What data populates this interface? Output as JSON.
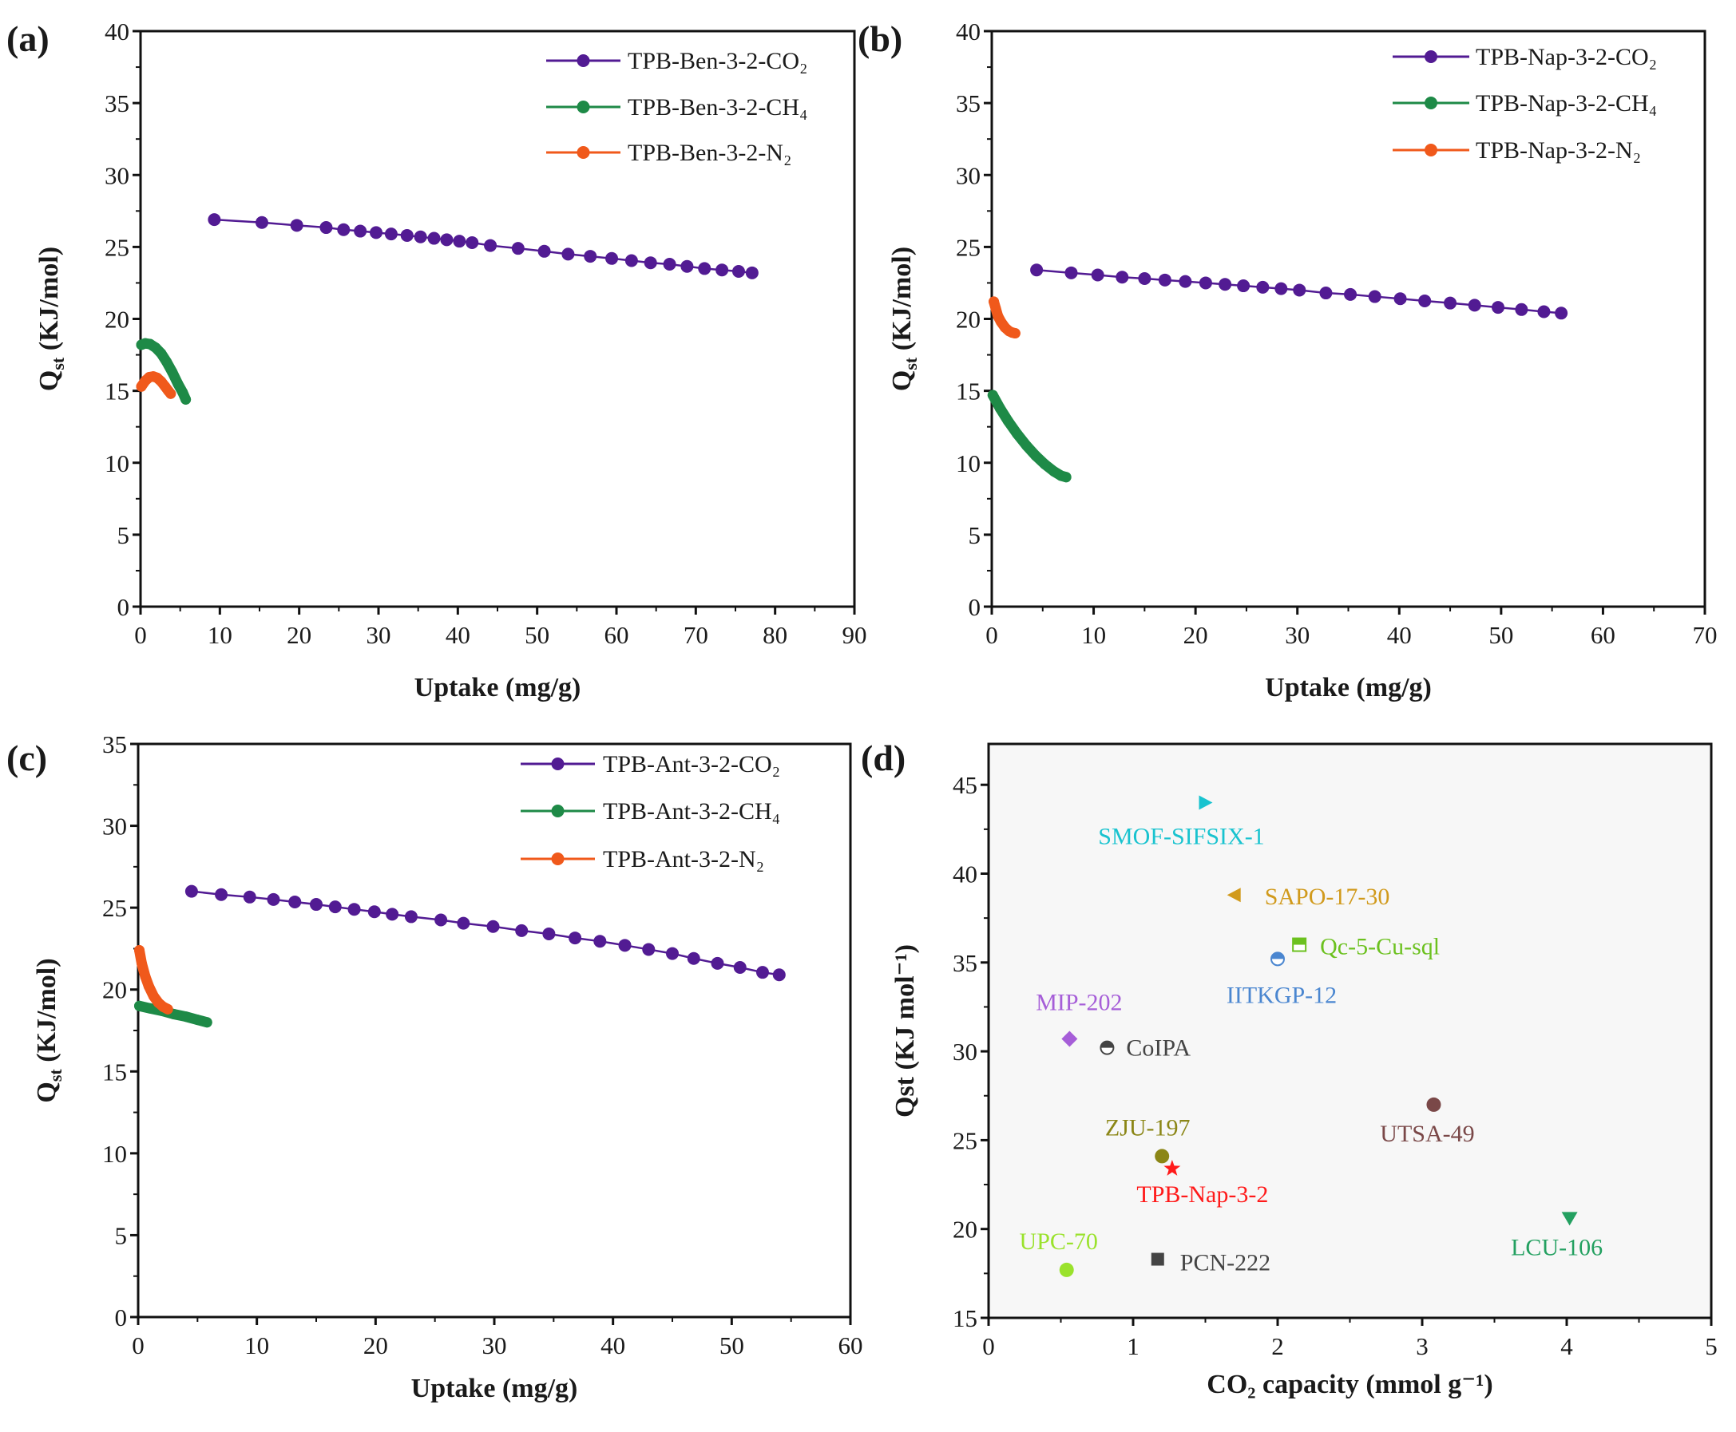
{
  "colors": {
    "co2": "#521b93",
    "ch4": "#1e8a47",
    "n2": "#f0591b",
    "axis": "#111111"
  },
  "chart_data": [
    {
      "panel_label": "(a)",
      "type": "line",
      "xlabel": "Uptake (mg/g)",
      "ylabel_main": "Q",
      "ylabel_sub": "st",
      "ylabel_rest": " (KJ/mol)",
      "xlim": [
        0,
        90
      ],
      "ylim": [
        0,
        40
      ],
      "xticks": [
        0,
        10,
        20,
        30,
        40,
        50,
        60,
        70,
        80,
        90
      ],
      "yticks": [
        0,
        5,
        10,
        15,
        20,
        25,
        30,
        35,
        40
      ],
      "legend_position": "top-right",
      "series": [
        {
          "name": "TPB-Ben-3-2-CO₂",
          "color_key": "co2",
          "style": "line-markers",
          "x": [
            9.3,
            15.3,
            19.7,
            23.4,
            25.6,
            27.7,
            29.7,
            31.6,
            33.6,
            35.3,
            37.0,
            38.6,
            40.2,
            41.8,
            44.1,
            47.6,
            50.9,
            53.9,
            56.7,
            59.4,
            61.9,
            64.3,
            66.7,
            68.9,
            71.1,
            73.3,
            75.4,
            77.1
          ],
          "y": [
            26.9,
            26.7,
            26.5,
            26.35,
            26.2,
            26.1,
            26.0,
            25.9,
            25.8,
            25.7,
            25.6,
            25.5,
            25.4,
            25.3,
            25.1,
            24.9,
            24.7,
            24.5,
            24.35,
            24.2,
            24.05,
            23.9,
            23.8,
            23.65,
            23.5,
            23.4,
            23.3,
            23.2
          ]
        },
        {
          "name": "TPB-Ben-3-2-CH₄",
          "color_key": "ch4",
          "style": "dense",
          "x": [
            0.1,
            0.6,
            1.2,
            1.9,
            2.6,
            3.3,
            4.0,
            4.7,
            5.3,
            5.7
          ],
          "y": [
            18.2,
            18.3,
            18.25,
            18.0,
            17.6,
            17.0,
            16.3,
            15.5,
            14.9,
            14.4
          ]
        },
        {
          "name": "TPB-Ben-3-2-N₂",
          "color_key": "n2",
          "style": "dense",
          "x": [
            0.1,
            0.6,
            1.1,
            1.6,
            2.1,
            2.6,
            3.1,
            3.5,
            3.8
          ],
          "y": [
            15.3,
            15.7,
            15.95,
            16.0,
            15.9,
            15.65,
            15.3,
            15.0,
            14.8
          ]
        }
      ]
    },
    {
      "panel_label": "(b)",
      "type": "line",
      "xlabel": "Uptake (mg/g)",
      "ylabel_main": "Q",
      "ylabel_sub": "st",
      "ylabel_rest": " (KJ/mol)",
      "xlim": [
        0,
        70
      ],
      "ylim": [
        0,
        40
      ],
      "xticks": [
        0,
        10,
        20,
        30,
        40,
        50,
        60,
        70
      ],
      "yticks": [
        0,
        5,
        10,
        15,
        20,
        25,
        30,
        35,
        40
      ],
      "legend_position": "top-right",
      "series": [
        {
          "name": "TPB-Nap-3-2-CO₂",
          "color_key": "co2",
          "style": "line-markers",
          "x": [
            4.4,
            7.8,
            10.4,
            12.8,
            15.0,
            17.0,
            19.0,
            21.0,
            22.9,
            24.7,
            26.6,
            28.4,
            30.2,
            32.8,
            35.2,
            37.6,
            40.1,
            42.5,
            45.0,
            47.4,
            49.7,
            52.0,
            54.2,
            55.9
          ],
          "y": [
            23.4,
            23.2,
            23.05,
            22.9,
            22.8,
            22.7,
            22.6,
            22.5,
            22.4,
            22.3,
            22.2,
            22.1,
            22.0,
            21.8,
            21.7,
            21.55,
            21.4,
            21.25,
            21.1,
            20.95,
            20.8,
            20.65,
            20.5,
            20.4
          ]
        },
        {
          "name": "TPB-Nap-3-2-CH₄",
          "color_key": "ch4",
          "style": "dense",
          "x": [
            0.1,
            0.8,
            1.6,
            2.5,
            3.4,
            4.3,
            5.2,
            6.1,
            6.8,
            7.3
          ],
          "y": [
            14.7,
            13.8,
            12.9,
            12.0,
            11.2,
            10.5,
            9.9,
            9.4,
            9.1,
            9.0
          ]
        },
        {
          "name": "TPB-Nap-3-2-N₂",
          "color_key": "n2",
          "style": "dense",
          "x": [
            0.2,
            0.4,
            0.6,
            0.9,
            1.3,
            1.7,
            2.0,
            2.3
          ],
          "y": [
            21.2,
            20.7,
            20.2,
            19.8,
            19.4,
            19.15,
            19.05,
            19.0
          ]
        }
      ]
    },
    {
      "panel_label": "(c)",
      "type": "line",
      "xlabel": "Uptake (mg/g)",
      "ylabel_main": "Q",
      "ylabel_sub": "st",
      "ylabel_rest": " (KJ/mol)",
      "xlim": [
        0,
        60
      ],
      "ylim": [
        0,
        35
      ],
      "xticks": [
        0,
        10,
        20,
        30,
        40,
        50,
        60
      ],
      "yticks": [
        0,
        5,
        10,
        15,
        20,
        25,
        30,
        35
      ],
      "legend_position": "top-right",
      "series": [
        {
          "name": "TPB-Ant-3-2-CO₂",
          "color_key": "co2",
          "style": "line-markers",
          "x": [
            4.5,
            7.0,
            9.4,
            11.4,
            13.2,
            15.0,
            16.6,
            18.2,
            19.9,
            21.4,
            23.0,
            25.5,
            27.4,
            29.9,
            32.3,
            34.6,
            36.8,
            38.9,
            41.0,
            43.0,
            45.0,
            46.8,
            48.8,
            50.7,
            52.6,
            54.0
          ],
          "y": [
            26.0,
            25.8,
            25.65,
            25.5,
            25.35,
            25.2,
            25.05,
            24.9,
            24.75,
            24.6,
            24.45,
            24.25,
            24.05,
            23.85,
            23.6,
            23.4,
            23.15,
            22.95,
            22.7,
            22.45,
            22.2,
            21.9,
            21.6,
            21.35,
            21.05,
            20.9
          ]
        },
        {
          "name": "TPB-Ant-3-2-CH₄",
          "color_key": "ch4",
          "style": "dense",
          "x": [
            0.1,
            1.0,
            2.0,
            3.0,
            4.0,
            5.0,
            5.8
          ],
          "y": [
            19.0,
            18.85,
            18.7,
            18.5,
            18.35,
            18.15,
            18.0
          ]
        },
        {
          "name": "TPB-Ant-3-2-N₂",
          "color_key": "n2",
          "style": "dense",
          "x": [
            0.1,
            0.3,
            0.6,
            0.9,
            1.3,
            1.7,
            2.1,
            2.5
          ],
          "y": [
            22.4,
            21.6,
            20.8,
            20.2,
            19.6,
            19.2,
            18.95,
            18.8
          ]
        }
      ]
    },
    {
      "panel_label": "(d)",
      "type": "scatter",
      "xlabel": "CO₂ capacity (mmol g⁻¹)",
      "ylabel": "Qst (KJ mol⁻¹)",
      "xlim": [
        0,
        5
      ],
      "ylim": [
        15,
        47.3
      ],
      "xticks": [
        0,
        1,
        2,
        3,
        4,
        5
      ],
      "yticks": [
        15,
        20,
        25,
        30,
        35,
        40,
        45
      ],
      "points": [
        {
          "name": "SMOF-SIFSIX-1",
          "x": 1.5,
          "y": 44.0,
          "marker": "triangle-right",
          "color": "#19c3cf"
        },
        {
          "name": "SAPO-17-30",
          "x": 1.7,
          "y": 38.8,
          "marker": "triangle-left",
          "color": "#d19a1c"
        },
        {
          "name": "Qc-5-Cu-sql",
          "x": 2.15,
          "y": 36.0,
          "marker": "square-half",
          "color": "#6cc11f"
        },
        {
          "name": "IITKGP-12",
          "x": 2.0,
          "y": 35.2,
          "marker": "circle-half",
          "color": "#4a86d0"
        },
        {
          "name": "MIP-202",
          "x": 0.56,
          "y": 30.7,
          "marker": "diamond",
          "color": "#a65ed8"
        },
        {
          "name": "CoIPA",
          "x": 0.82,
          "y": 30.2,
          "marker": "circle-half",
          "color": "#444444"
        },
        {
          "name": "UTSA-49",
          "x": 3.08,
          "y": 27.0,
          "marker": "circle",
          "color": "#7a4848"
        },
        {
          "name": "ZJU-197",
          "x": 1.2,
          "y": 24.1,
          "marker": "circle",
          "color": "#8b8616"
        },
        {
          "name": "TPB-Nap-3-2",
          "x": 1.27,
          "y": 23.4,
          "marker": "star",
          "color": "#ff1a1a"
        },
        {
          "name": "LCU-106",
          "x": 4.02,
          "y": 20.6,
          "marker": "triangle-down",
          "color": "#23a060"
        },
        {
          "name": "UPC-70",
          "x": 0.54,
          "y": 17.7,
          "marker": "circle",
          "color": "#9ae22c"
        },
        {
          "name": "PCN-222",
          "x": 1.17,
          "y": 18.3,
          "marker": "square",
          "color": "#444444"
        }
      ]
    }
  ]
}
